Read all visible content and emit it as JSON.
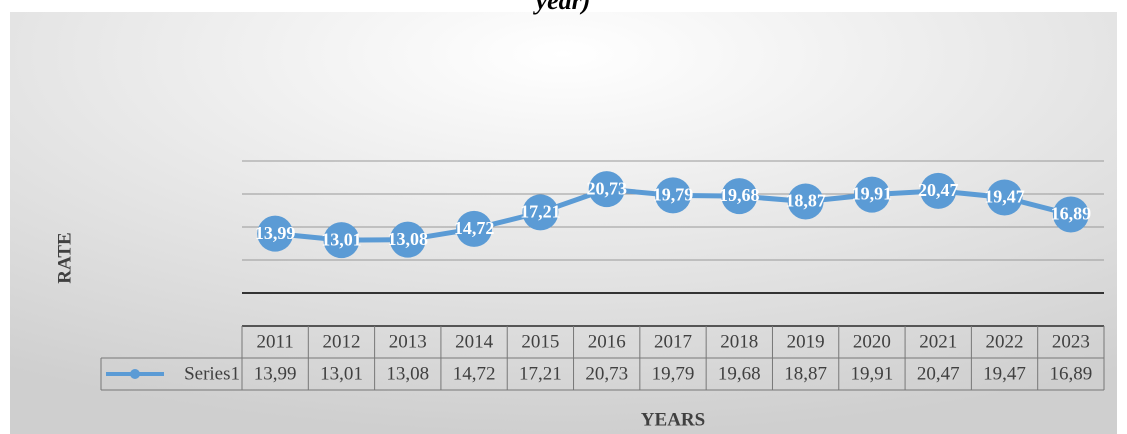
{
  "chart_data": {
    "type": "line",
    "title": "year)",
    "x_label": "YEARS",
    "y_label": "RATE",
    "categories": [
      "2011",
      "2012",
      "2013",
      "2014",
      "2015",
      "2016",
      "2017",
      "2018",
      "2019",
      "2020",
      "2021",
      "2022",
      "2023"
    ],
    "series": [
      {
        "name": "Series1",
        "color": "#5b9bd5",
        "values": [
          13.99,
          13.01,
          13.08,
          14.72,
          17.21,
          20.73,
          19.79,
          19.68,
          18.87,
          19.91,
          20.47,
          19.47,
          16.89
        ],
        "value_labels": [
          "13,99",
          "13,01",
          "13,08",
          "14,72",
          "17,21",
          "20,73",
          "19,79",
          "19,68",
          "18,87",
          "19,91",
          "20,47",
          "19,47",
          "16,89"
        ]
      }
    ],
    "ylim": [
      0,
      25
    ],
    "yticks": [
      0,
      5,
      10,
      15,
      20,
      25
    ],
    "grid": true
  }
}
